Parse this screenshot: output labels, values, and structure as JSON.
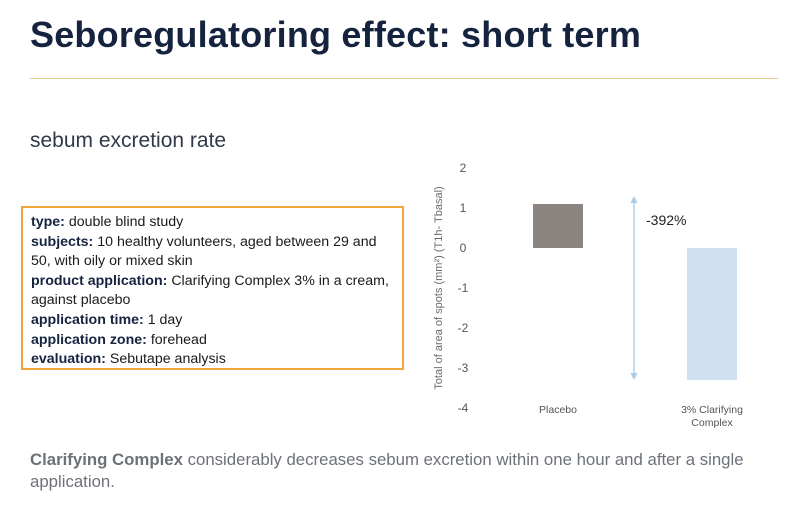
{
  "title": "Seboregulatoring effect: short term",
  "subtitle": "sebum excretion rate",
  "info": [
    {
      "label": "type:",
      "value": "double blind study"
    },
    {
      "label": "subjects:",
      "value": "10 healthy volunteers, aged between 29 and 50, with oily or mixed skin"
    },
    {
      "label": "product application:",
      "value": "Clarifying Complex 3% in a cream, against placebo"
    },
    {
      "label": "application time:",
      "value": "1 day"
    },
    {
      "label": "application zone:",
      "value": "forehead"
    },
    {
      "label": "evaluation:",
      "value": "Sebutape analysis"
    }
  ],
  "chart_data": {
    "type": "bar",
    "categories": [
      "Placebo",
      "3% Clarifying Complex"
    ],
    "values": [
      1.1,
      -3.3
    ],
    "ylim": [
      -4,
      2
    ],
    "yticks": [
      "2",
      "1",
      "0",
      "-1",
      "-2",
      "-3",
      "-4"
    ],
    "ylabel": "Total of area of spots (mm²) (T1h- Tbasal)",
    "annotation": "-392%",
    "colors": [
      "#8c8480",
      "#cfe0f1"
    ],
    "arrow_color": "#a9cbe6",
    "grid": false
  },
  "footer": {
    "bold": "Clarifying Complex",
    "text": " considerably decreases sebum excretion within one hour and after a single application."
  }
}
